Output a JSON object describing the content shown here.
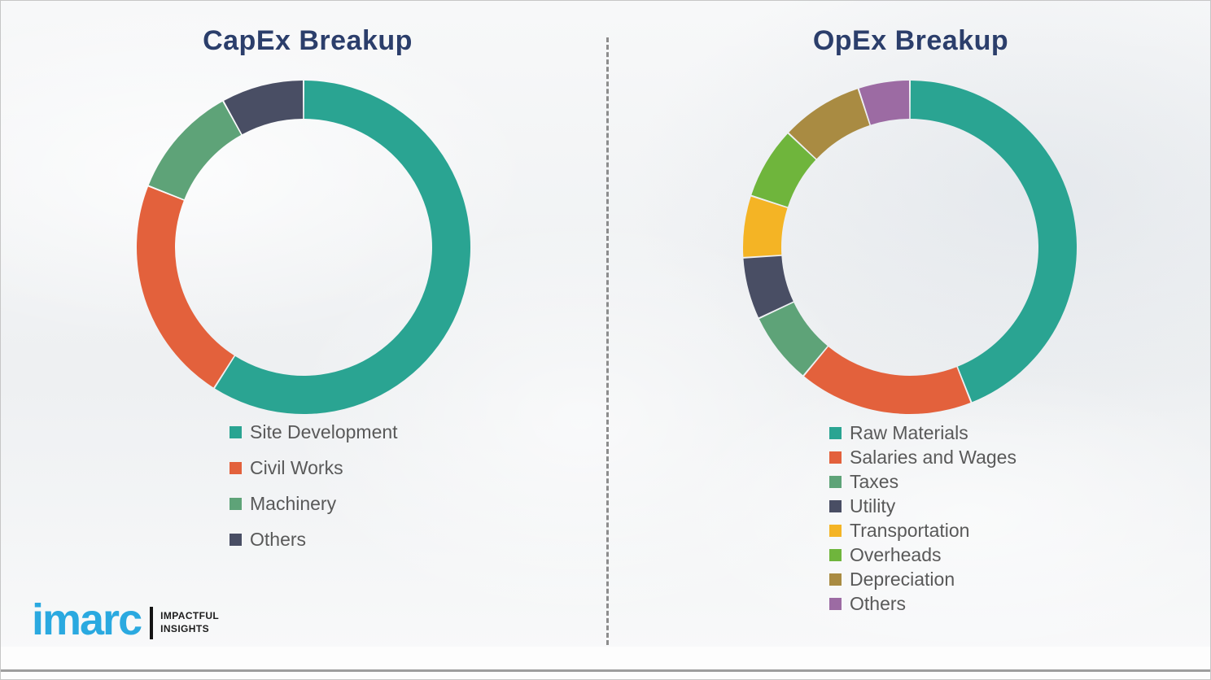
{
  "theme": {
    "background_color": "#EEF0F2",
    "title_color": "#2B3E6B",
    "legend_text_color": "#595959",
    "divider_color": "#7B7B7B"
  },
  "chart_data": [
    {
      "type": "pie",
      "subtype": "donut",
      "title": "CapEx Breakup",
      "labels": [
        "Site Development",
        "Civil Works",
        "Machinery",
        "Others"
      ],
      "values": [
        59,
        22,
        11,
        8
      ],
      "unit": "%",
      "values_are_estimates": true,
      "colors": [
        "#2AA492",
        "#E3613C",
        "#5EA378",
        "#494E64"
      ],
      "start_angle_deg": 0,
      "direction": "clockwise",
      "inner_radius_ratio": 0.77,
      "legend_position": "bottom"
    },
    {
      "type": "pie",
      "subtype": "donut",
      "title": "OpEx Breakup",
      "labels": [
        "Raw Materials",
        "Salaries and Wages",
        "Taxes",
        "Utility",
        "Transportation",
        "Overheads",
        "Depreciation",
        "Others"
      ],
      "values": [
        44,
        17,
        7,
        6,
        6,
        7,
        8,
        5
      ],
      "unit": "%",
      "values_are_estimates": true,
      "colors": [
        "#2AA492",
        "#E3613C",
        "#5EA378",
        "#494E64",
        "#F4B425",
        "#6FB53C",
        "#A98B42",
        "#9C6BA3"
      ],
      "start_angle_deg": 0,
      "direction": "clockwise",
      "inner_radius_ratio": 0.77,
      "legend_position": "bottom"
    }
  ],
  "logo": {
    "brand": "imarc",
    "brand_color": "#2AA9E0",
    "bar_color": "#141414",
    "tagline_line1": "IMPACTFUL",
    "tagline_line2": "INSIGHTS"
  }
}
